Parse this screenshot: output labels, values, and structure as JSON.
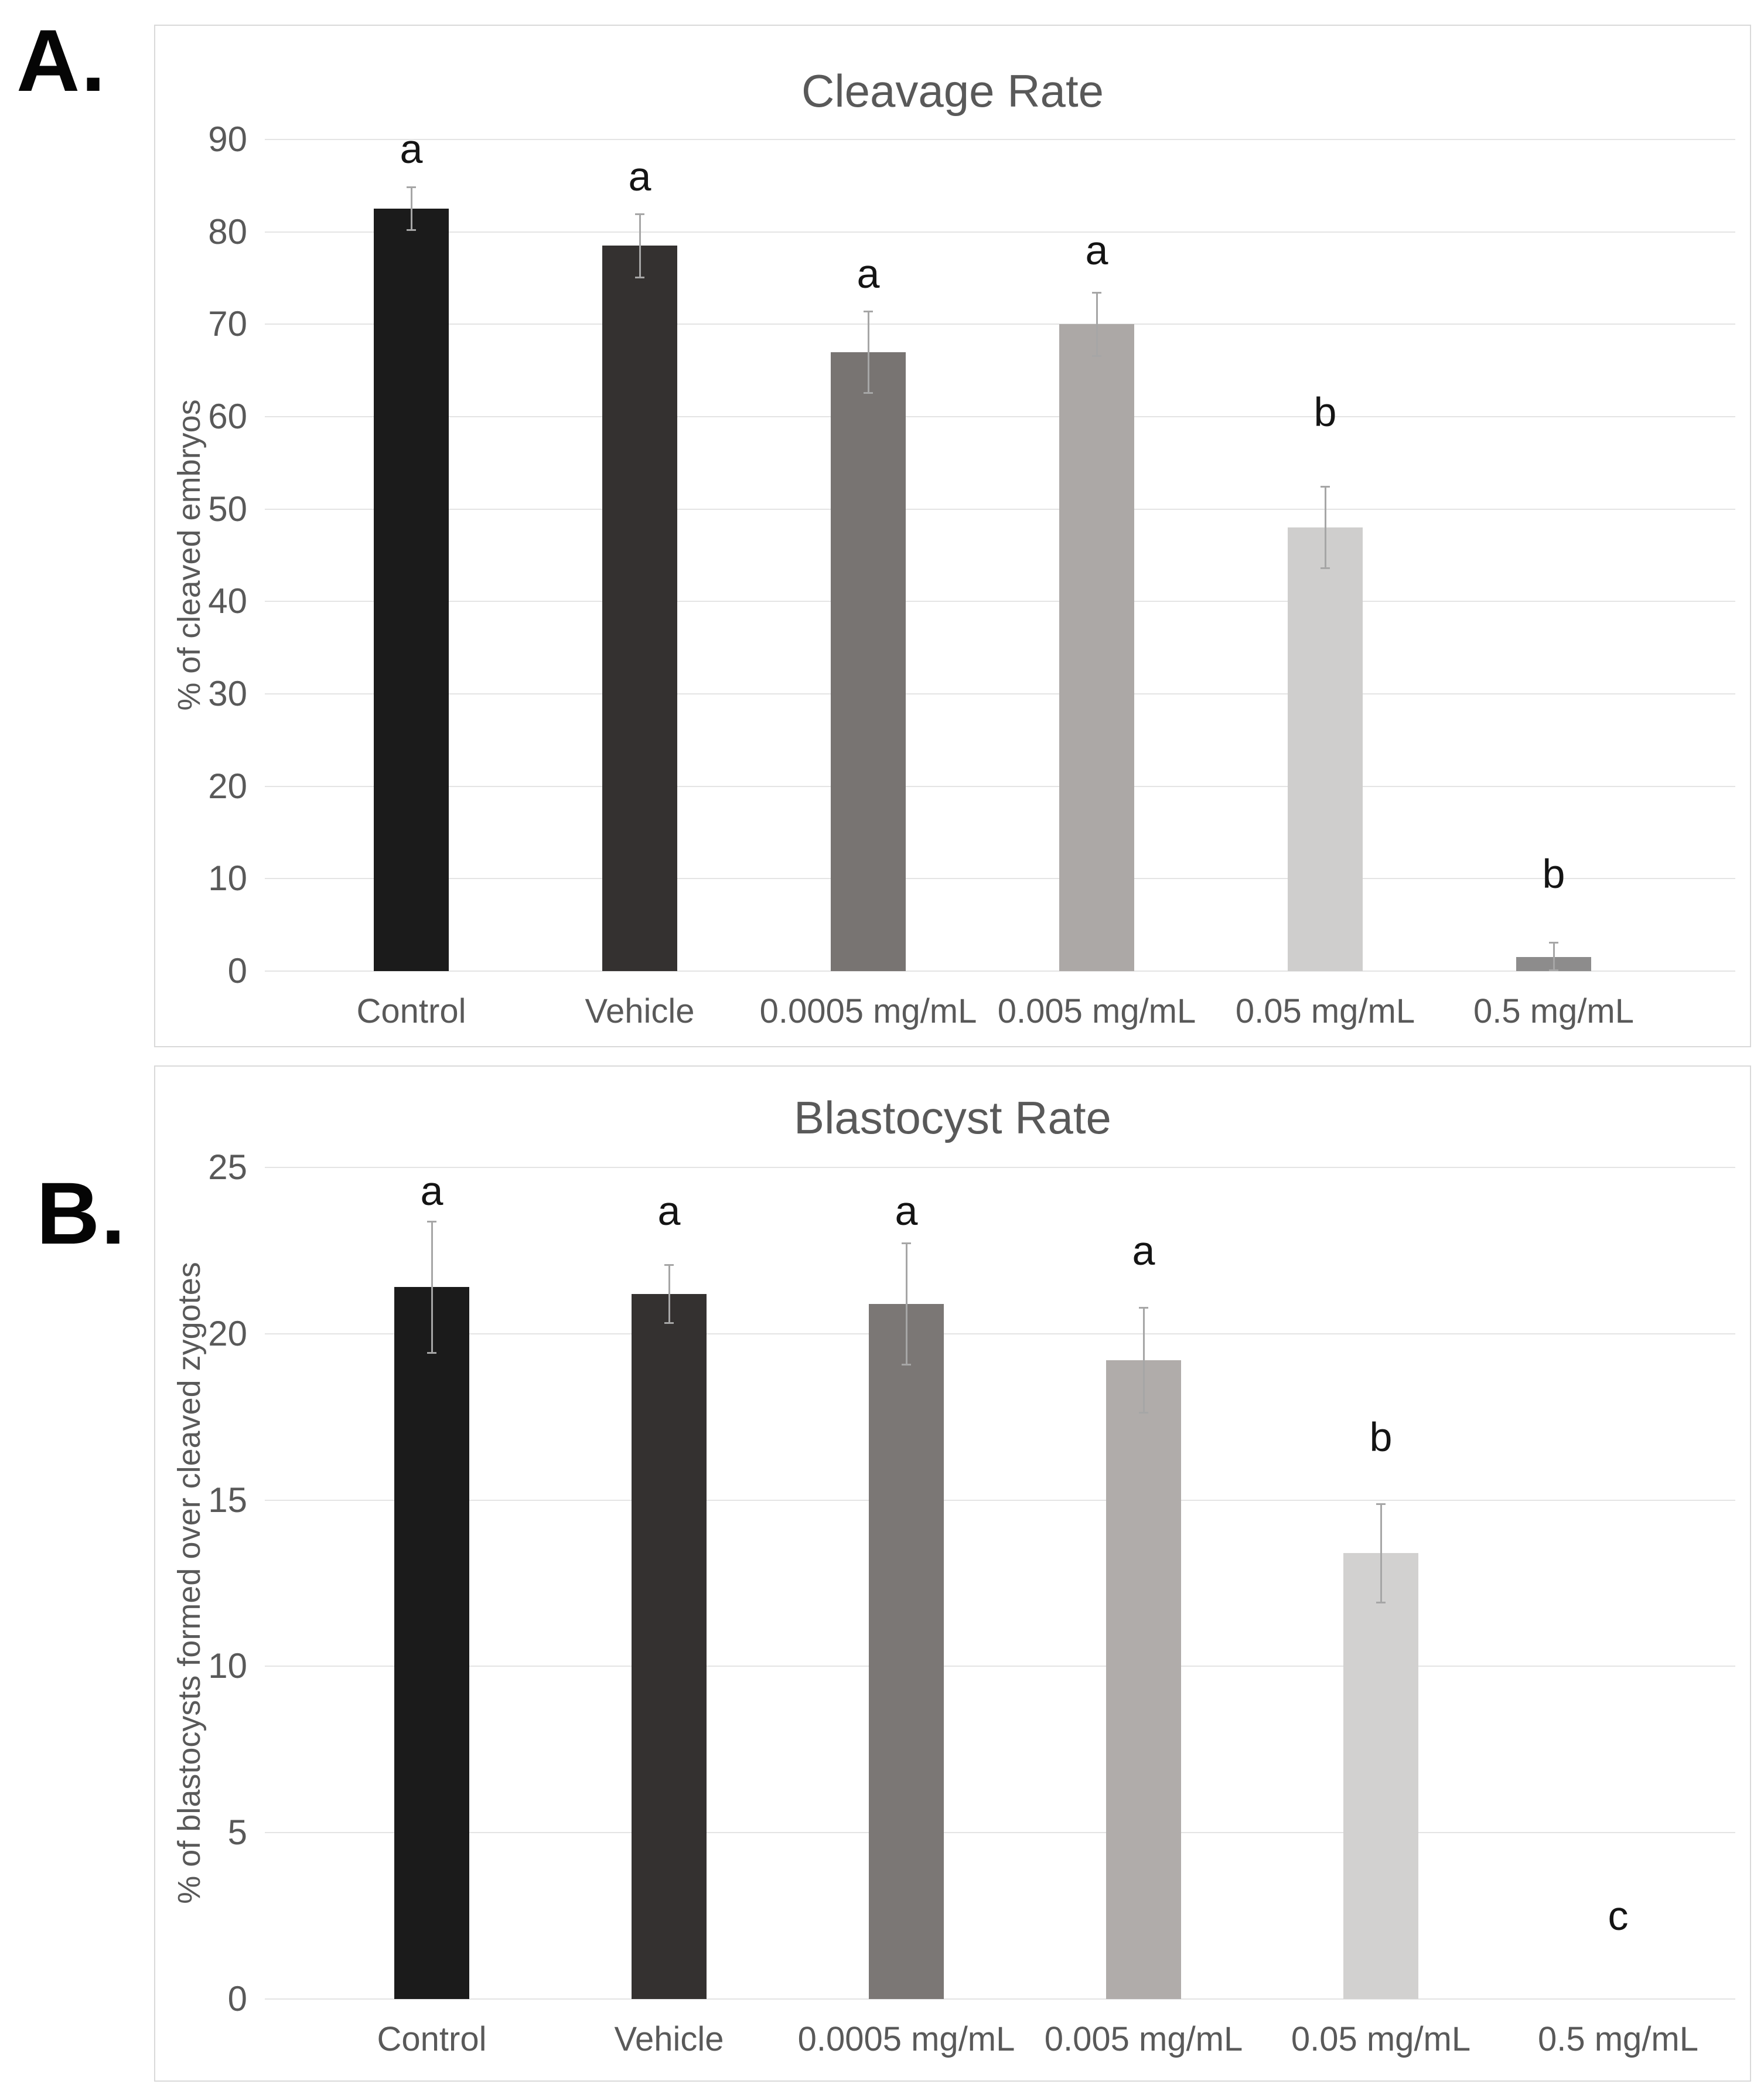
{
  "panels": [
    {
      "label": "A."
    },
    {
      "label": "B."
    }
  ],
  "chart_data": [
    {
      "type": "bar",
      "title": "Cleavage Rate",
      "xlabel": "",
      "ylabel": "% of cleaved embryos",
      "ylim": [
        0,
        90
      ],
      "yticks": [
        0,
        10,
        20,
        30,
        40,
        50,
        60,
        70,
        80,
        90
      ],
      "grid": true,
      "legend": false,
      "categories": [
        "Control",
        "Vehicle",
        "0.0005 mg/mL",
        "0.005 mg/mL",
        "0.05 mg/mL",
        "0.5 mg/mL"
      ],
      "values": [
        82.5,
        78.5,
        67,
        70,
        48,
        1.5
      ],
      "errors": [
        2.4,
        3.5,
        4.5,
        3.5,
        4.5,
        1.7
      ],
      "sig_letters": [
        "a",
        "a",
        "a",
        "a",
        "b",
        "b"
      ],
      "sig_letter_y": [
        89,
        86,
        75.5,
        78,
        60.5,
        10.5
      ],
      "bar_colors": [
        "#1b1b1b",
        "#343130",
        "#787472",
        "#aca8a6",
        "#cfcecd",
        "#8d8c8c"
      ],
      "error_color": "#a6a6a6",
      "text_color": "#595959",
      "grid_color": "#e4e4e4"
    },
    {
      "type": "bar",
      "title": "Blastocyst Rate",
      "xlabel": "",
      "ylabel": "% of blastocysts formed over cleaved zygotes",
      "ylim": [
        0,
        25
      ],
      "yticks": [
        0,
        5,
        10,
        15,
        20,
        25
      ],
      "grid": true,
      "legend": false,
      "categories": [
        "Control",
        "Vehicle",
        "0.0005 mg/mL",
        "0.005 mg/mL",
        "0.05 mg/mL",
        "0.5 mg/mL"
      ],
      "values": [
        21.4,
        21.2,
        20.9,
        19.2,
        13.4,
        0
      ],
      "errors": [
        2.0,
        0.9,
        1.85,
        1.6,
        1.5,
        0
      ],
      "sig_letters": [
        "a",
        "a",
        "a",
        "a",
        "b",
        "c"
      ],
      "sig_letter_y": [
        24.3,
        23.7,
        23.7,
        22.5,
        16.9,
        2.5
      ],
      "bar_colors": [
        "#1b1b1b",
        "#343130",
        "#7b7775",
        "#b0acaa",
        "#d2d1d0",
        "#8d8c8c"
      ],
      "error_color": "#a6a6a6",
      "text_color": "#595959",
      "grid_color": "#e4e4e4"
    }
  ]
}
